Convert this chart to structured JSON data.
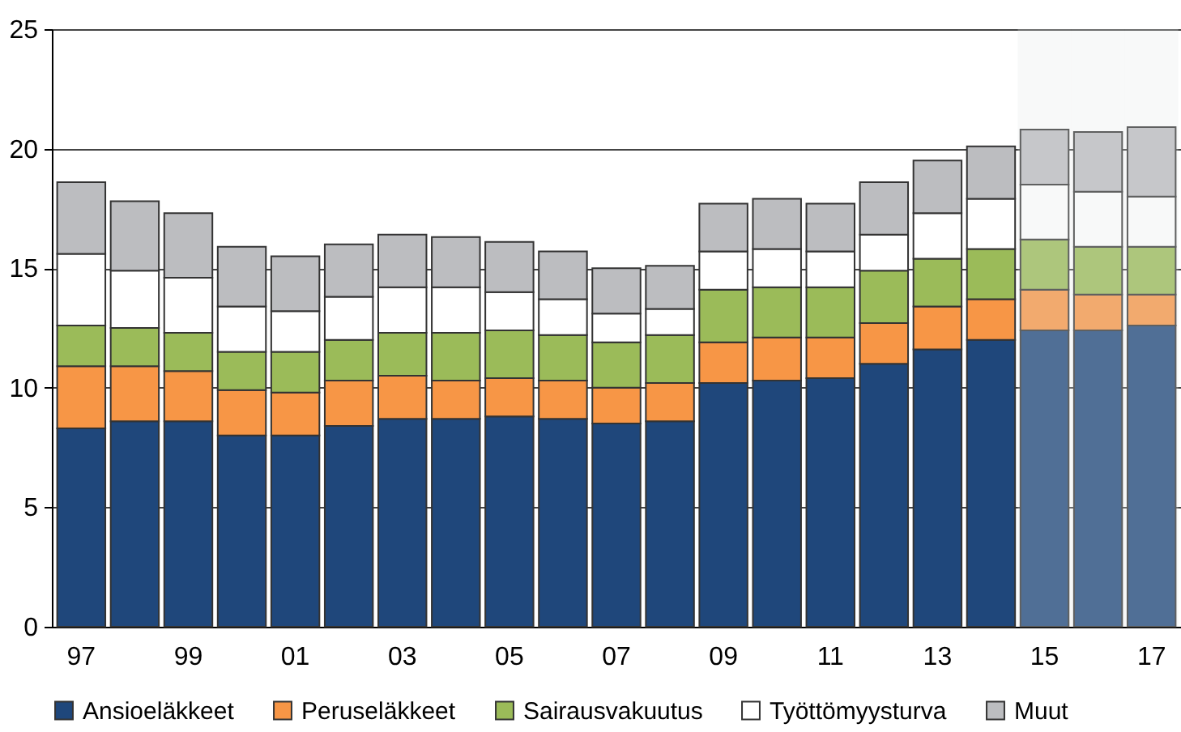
{
  "chart_data": {
    "type": "bar",
    "stacked": true,
    "categories": [
      "97",
      null,
      "99",
      null,
      "01",
      null,
      "03",
      null,
      "05",
      null,
      "07",
      null,
      "09",
      null,
      "11",
      null,
      "13",
      null,
      "15",
      null,
      "17"
    ],
    "series": [
      {
        "name": "Ansioeläkkeet",
        "color": "#1f477b",
        "values": [
          8.3,
          8.6,
          8.6,
          8.0,
          8.0,
          8.4,
          8.7,
          8.7,
          8.8,
          8.7,
          8.5,
          8.6,
          10.2,
          10.3,
          10.4,
          11.0,
          11.6,
          12.0,
          12.4,
          12.4,
          12.6
        ]
      },
      {
        "name": "Peruseläkkeet",
        "color": "#f79646",
        "values": [
          2.6,
          2.3,
          2.1,
          1.9,
          1.8,
          1.9,
          1.8,
          1.6,
          1.6,
          1.6,
          1.5,
          1.6,
          1.7,
          1.8,
          1.7,
          1.7,
          1.8,
          1.7,
          1.7,
          1.5,
          1.3
        ]
      },
      {
        "name": "Sairausvakuutus",
        "color": "#9bbb59",
        "values": [
          1.7,
          1.6,
          1.6,
          1.6,
          1.7,
          1.7,
          1.8,
          2.0,
          2.0,
          1.9,
          1.9,
          2.0,
          2.2,
          2.1,
          2.1,
          2.2,
          2.0,
          2.1,
          2.1,
          2.0,
          2.0
        ]
      },
      {
        "name": "Työttömyysturva",
        "color": "#ffffff",
        "values": [
          3.0,
          2.4,
          2.3,
          1.9,
          1.7,
          1.8,
          1.9,
          1.9,
          1.6,
          1.5,
          1.2,
          1.1,
          1.6,
          1.6,
          1.5,
          1.5,
          1.9,
          2.1,
          2.3,
          2.3,
          2.1
        ]
      },
      {
        "name": "Muut",
        "color": "#bcbdc0",
        "values": [
          3.0,
          2.9,
          2.7,
          2.5,
          2.3,
          2.2,
          2.2,
          2.1,
          2.1,
          2.0,
          1.9,
          1.8,
          2.0,
          2.1,
          2.0,
          2.2,
          2.2,
          2.2,
          2.3,
          2.5,
          2.9
        ]
      }
    ],
    "ylim": [
      0,
      25
    ],
    "yticks": [
      0,
      5,
      10,
      15,
      20,
      25
    ],
    "grid": "y",
    "legend": "bottom",
    "bands": [
      {
        "axis": "x",
        "from": "15",
        "to": "17",
        "color": "#e4e6e6"
      }
    ]
  }
}
